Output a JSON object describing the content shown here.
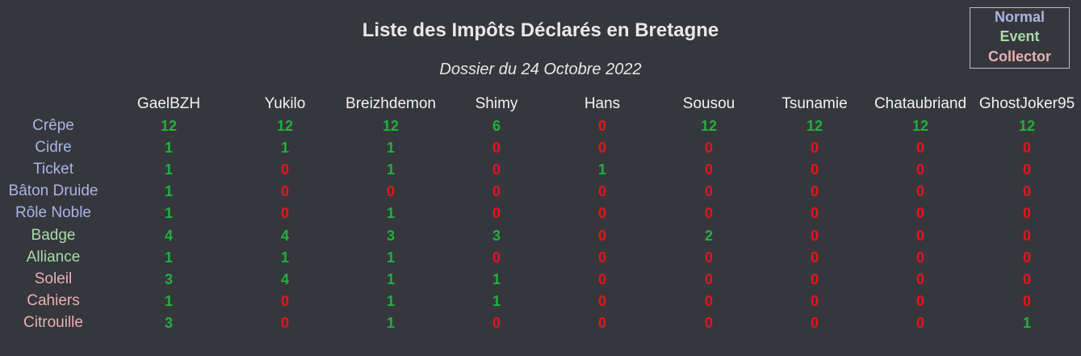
{
  "title": "Liste des Impôts Déclarés en Bretagne",
  "subtitle": "Dossier du 24 Octobre 2022",
  "legend": {
    "items": [
      {
        "label": "Normal",
        "color": "#aab4e6"
      },
      {
        "label": "Event",
        "color": "#a8dba8"
      },
      {
        "label": "Collector",
        "color": "#e8b0b0"
      }
    ]
  },
  "colors": {
    "positive": "#21b13c",
    "zero": "#e8141c",
    "header": "#f2f2f2"
  },
  "table": {
    "columns": [
      "GaelBZH",
      "Yukilo",
      "Breizhdemon",
      "Shimy",
      "Hans",
      "Sousou",
      "Tsunamie",
      "Chataubriand",
      "GhostJoker95"
    ],
    "rows": [
      {
        "label": "Crêpe",
        "category": "normal",
        "values": [
          "12",
          "12",
          "12",
          "6",
          "0",
          "12",
          "12",
          "12",
          "12"
        ]
      },
      {
        "label": "Cidre",
        "category": "normal",
        "values": [
          "1",
          "1",
          "1",
          "0",
          "0",
          "0",
          "0",
          "0",
          "0"
        ]
      },
      {
        "label": "Ticket",
        "category": "normal",
        "values": [
          "1",
          "0",
          "1",
          "0",
          "1",
          "0",
          "0",
          "0",
          "0"
        ]
      },
      {
        "label": "Bâton Druide",
        "category": "normal",
        "values": [
          "1",
          "0",
          "0",
          "0",
          "0",
          "0",
          "0",
          "0",
          "0"
        ]
      },
      {
        "label": "Rôle Noble",
        "category": "normal",
        "values": [
          "1",
          "0",
          "1",
          "0",
          "0",
          "0",
          "0",
          "0",
          "0"
        ]
      },
      {
        "label": "Badge",
        "category": "event",
        "values": [
          "4",
          "4",
          "3",
          "3",
          "0",
          "2",
          "0",
          "0",
          "0"
        ]
      },
      {
        "label": "Alliance",
        "category": "event",
        "values": [
          "1",
          "1",
          "1",
          "0",
          "0",
          "0",
          "0",
          "0",
          "0"
        ]
      },
      {
        "label": "Soleil",
        "category": "collector",
        "values": [
          "3",
          "4",
          "1",
          "1",
          "0",
          "0",
          "0",
          "0",
          "0"
        ]
      },
      {
        "label": "Cahiers",
        "category": "collector",
        "values": [
          "1",
          "0",
          "1",
          "1",
          "0",
          "0",
          "0",
          "0",
          "0"
        ]
      },
      {
        "label": "Citrouille",
        "category": "collector",
        "values": [
          "3",
          "0",
          "1",
          "0",
          "0",
          "0",
          "0",
          "0",
          "1"
        ]
      }
    ]
  }
}
